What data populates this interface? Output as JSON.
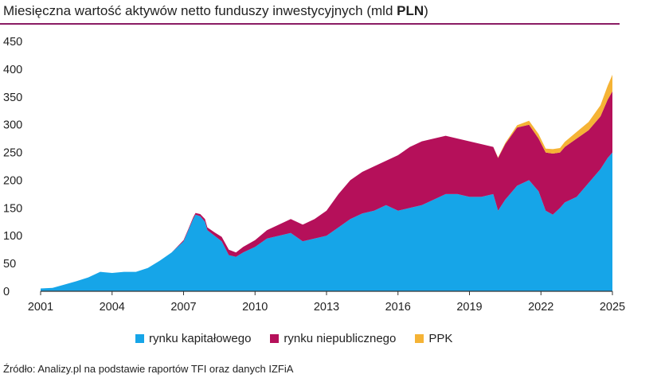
{
  "title_plain": "Miesięczna wartość aktywów netto funduszy inwestycyjnych (mld ",
  "title_bold": "PLN",
  "title_end": ")",
  "source": "Źródło: Analizy.pl na podstawie raportów TFI oraz danych IZFiA",
  "colors": {
    "accent_rule": "#8b1c64",
    "axis": "#333333"
  },
  "chart_data": {
    "type": "area",
    "stacked": true,
    "xlim": [
      2001,
      2025
    ],
    "ylim": [
      0,
      450
    ],
    "x_ticks": [
      "2001",
      "2004",
      "2007",
      "2010",
      "2013",
      "2016",
      "2019",
      "2022",
      "2025"
    ],
    "y_ticks": [
      "0",
      "50",
      "100",
      "150",
      "200",
      "250",
      "300",
      "350",
      "400",
      "450"
    ],
    "grid": false,
    "legend_position": "bottom",
    "x": [
      2001.0,
      2001.5,
      2002.0,
      2002.5,
      2003.0,
      2003.5,
      2004.0,
      2004.5,
      2005.0,
      2005.5,
      2006.0,
      2006.5,
      2007.0,
      2007.2,
      2007.4,
      2007.5,
      2007.7,
      2007.9,
      2008.0,
      2008.3,
      2008.6,
      2008.9,
      2009.2,
      2009.5,
      2010.0,
      2010.5,
      2011.0,
      2011.5,
      2012.0,
      2012.5,
      2013.0,
      2013.5,
      2014.0,
      2014.5,
      2015.0,
      2015.5,
      2016.0,
      2016.5,
      2017.0,
      2017.5,
      2018.0,
      2018.5,
      2019.0,
      2019.5,
      2020.0,
      2020.2,
      2020.5,
      2021.0,
      2021.5,
      2021.9,
      2022.2,
      2022.5,
      2022.8,
      2023.0,
      2023.5,
      2024.0,
      2024.5,
      2024.8,
      2025.0
    ],
    "series": [
      {
        "name": "rynku kapitałowego",
        "color": "#16a5e8",
        "values": [
          5,
          6,
          12,
          18,
          25,
          35,
          33,
          35,
          35,
          42,
          55,
          70,
          90,
          110,
          130,
          138,
          135,
          125,
          110,
          100,
          90,
          65,
          62,
          70,
          80,
          95,
          100,
          105,
          90,
          95,
          100,
          115,
          130,
          140,
          145,
          155,
          145,
          150,
          155,
          165,
          175,
          175,
          170,
          170,
          175,
          145,
          165,
          190,
          200,
          180,
          145,
          138,
          150,
          160,
          170,
          195,
          220,
          240,
          250
        ]
      },
      {
        "name": "rynku niepublicznego",
        "color": "#b5105a",
        "values": [
          0,
          0,
          0,
          0,
          0,
          0,
          0,
          0,
          0,
          0,
          0,
          0,
          2,
          2,
          3,
          3,
          4,
          5,
          5,
          6,
          8,
          10,
          8,
          10,
          12,
          15,
          20,
          25,
          30,
          35,
          45,
          60,
          70,
          75,
          80,
          80,
          100,
          110,
          115,
          110,
          105,
          100,
          100,
          95,
          85,
          95,
          100,
          105,
          100,
          95,
          105,
          110,
          100,
          100,
          105,
          95,
          95,
          105,
          110
        ]
      },
      {
        "name": "PPK",
        "color": "#f5b335",
        "values": [
          0,
          0,
          0,
          0,
          0,
          0,
          0,
          0,
          0,
          0,
          0,
          0,
          0,
          0,
          0,
          0,
          0,
          0,
          0,
          0,
          0,
          0,
          0,
          0,
          0,
          0,
          0,
          0,
          0,
          0,
          0,
          0,
          0,
          0,
          0,
          0,
          0,
          0,
          0,
          0,
          0,
          0,
          0,
          0,
          0,
          1,
          2,
          4,
          7,
          8,
          7,
          8,
          8,
          9,
          12,
          15,
          20,
          25,
          30
        ]
      }
    ]
  }
}
